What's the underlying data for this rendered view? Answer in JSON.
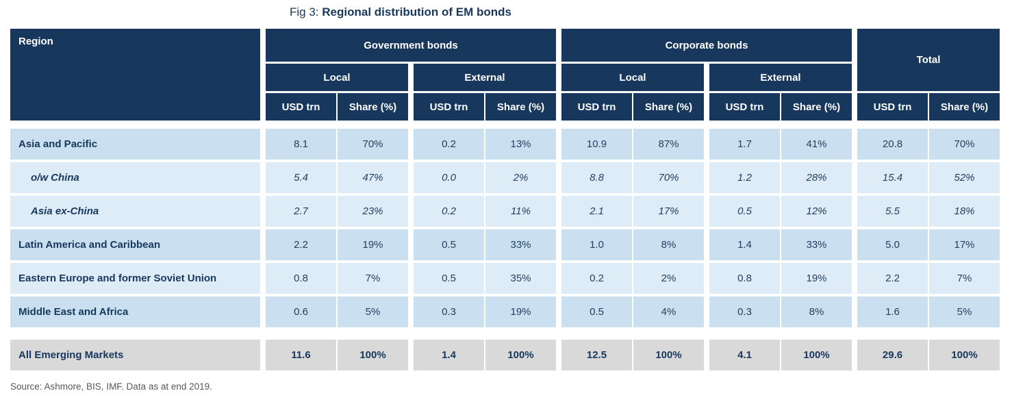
{
  "title": {
    "prefix": "Fig 3:",
    "main": "Regional distribution of EM bonds"
  },
  "header": {
    "region": "Region",
    "government": "Government bonds",
    "corporate": "Corporate bonds",
    "total": "Total",
    "local": "Local",
    "external": "External",
    "usd": "USD trn",
    "share": "Share (%)"
  },
  "rows": [
    {
      "region": "Asia and Pacific",
      "values": [
        "8.1",
        "70%",
        "0.2",
        "13%",
        "10.9",
        "87%",
        "1.7",
        "41%",
        "20.8",
        "70%"
      ]
    },
    {
      "region": "o/w China",
      "values": [
        "5.4",
        "47%",
        "0.0",
        "2%",
        "8.8",
        "70%",
        "1.2",
        "28%",
        "15.4",
        "52%"
      ]
    },
    {
      "region": "Asia ex-China",
      "values": [
        "2.7",
        "23%",
        "0.2",
        "11%",
        "2.1",
        "17%",
        "0.5",
        "12%",
        "5.5",
        "18%"
      ]
    },
    {
      "region": "Latin America and Caribbean",
      "values": [
        "2.2",
        "19%",
        "0.5",
        "33%",
        "1.0",
        "8%",
        "1.4",
        "33%",
        "5.0",
        "17%"
      ]
    },
    {
      "region": "Eastern Europe and former Soviet Union",
      "values": [
        "0.8",
        "7%",
        "0.5",
        "35%",
        "0.2",
        "2%",
        "0.8",
        "19%",
        "2.2",
        "7%"
      ]
    },
    {
      "region": "Middle East and Africa",
      "values": [
        "0.6",
        "5%",
        "0.3",
        "19%",
        "0.5",
        "4%",
        "0.3",
        "8%",
        "1.6",
        "5%"
      ]
    }
  ],
  "total_row": {
    "region": "All Emerging Markets",
    "values": [
      "11.6",
      "100%",
      "1.4",
      "100%",
      "12.5",
      "100%",
      "4.1",
      "100%",
      "29.6",
      "100%"
    ]
  },
  "source": "Source: Ashmore, BIS, IMF. Data as at end 2019.",
  "colors": {
    "navy": "#17375d",
    "row_dark": "#cadfef",
    "row_light": "#ddecf7",
    "total_bg": "#d9d9d9"
  }
}
